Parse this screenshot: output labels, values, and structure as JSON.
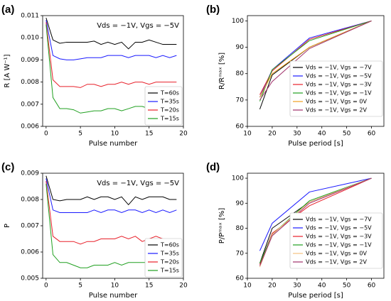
{
  "chart_data": [
    {
      "type": "line",
      "label": "(a)",
      "annotation": "Vds = −1V, Vgs = −5V",
      "xlabel": "Pulse number",
      "ylabel": "R [A W⁻¹]",
      "x": [
        0,
        1,
        2,
        3,
        4,
        5,
        6,
        7,
        8,
        9,
        10,
        11,
        12,
        13,
        14,
        15,
        16,
        17,
        18,
        19
      ],
      "xlim": [
        -0.5,
        20
      ],
      "xticks": [
        0,
        5,
        10,
        15,
        20
      ],
      "ylim": [
        0.006,
        0.011
      ],
      "yticks": [
        0.006,
        0.007,
        0.008,
        0.009,
        {
          "value": 0.01,
          "label": "0.010"
        },
        0.011
      ],
      "legend": "lower right",
      "series": [
        {
          "name": "T=60s",
          "color": "#000000",
          "values": [
            0.0109,
            0.0099,
            0.00975,
            0.0098,
            0.0098,
            0.0098,
            0.0098,
            0.00985,
            0.0097,
            0.0098,
            0.0097,
            0.0098,
            0.0095,
            0.0098,
            0.0098,
            0.0099,
            0.0098,
            0.0097,
            0.0097,
            0.0097
          ]
        },
        {
          "name": "T=35s",
          "color": "#1a1aff",
          "values": [
            0.0108,
            0.0092,
            0.00905,
            0.009,
            0.009,
            0.00905,
            0.0091,
            0.0091,
            0.0091,
            0.0092,
            0.0092,
            0.0092,
            0.0091,
            0.0092,
            0.0092,
            0.0092,
            0.0091,
            0.0092,
            0.0091,
            0.0092
          ]
        },
        {
          "name": "T=20s",
          "color": "#e8202a",
          "values": [
            0.0107,
            0.0081,
            0.0078,
            0.0078,
            0.0078,
            0.00775,
            0.0079,
            0.0079,
            0.0078,
            0.0079,
            0.0079,
            0.008,
            0.0079,
            0.008,
            0.008,
            0.0079,
            0.008,
            0.008,
            0.008,
            0.008
          ]
        },
        {
          "name": "T=15s",
          "color": "#20a020",
          "values": [
            0.0106,
            0.0073,
            0.0068,
            0.0068,
            0.00675,
            0.0066,
            0.00665,
            0.0067,
            0.0067,
            0.0068,
            0.0068,
            0.0067,
            0.0068,
            0.0069,
            0.0069,
            0.0068,
            0.0069,
            0.0069,
            0.0068,
            0.0069
          ]
        }
      ]
    },
    {
      "type": "line",
      "label": "(b)",
      "xlabel": "Pulse period [s]",
      "ylabel": "R/Rᵐᵃˣ [%]",
      "x": [
        15,
        20,
        35,
        60
      ],
      "xlim": [
        10,
        65
      ],
      "xticks": [
        10,
        20,
        30,
        40,
        50,
        60
      ],
      "ylim": [
        60,
        102
      ],
      "yticks": [
        60,
        70,
        80,
        90,
        100
      ],
      "legend": "lower right",
      "series": [
        {
          "name": "Vds = −1V, Vgs = −7V",
          "color": "#000000",
          "values": [
            66.5,
            79.5,
            90,
            100
          ]
        },
        {
          "name": "Vds = −1V, Vgs = −5V",
          "color": "#1a1aff",
          "values": [
            71,
            81.5,
            93.5,
            100
          ]
        },
        {
          "name": "Vds = −1V, Vgs = −3V",
          "color": "#e8202a",
          "values": [
            72,
            81,
            93,
            100
          ]
        },
        {
          "name": "Vds = −1V, Vgs = −1V",
          "color": "#20a020",
          "values": [
            69.5,
            81.5,
            92.5,
            100
          ]
        },
        {
          "name": "Vds = −1V, Vgs = 0V",
          "color": "#f0a020",
          "values": [
            71,
            80,
            90,
            100
          ]
        },
        {
          "name": "Vds = −1V, Vgs = 2V",
          "color": "#a0306a",
          "values": [
            70,
            77,
            89.5,
            100
          ]
        }
      ]
    },
    {
      "type": "line",
      "label": "(c)",
      "annotation": "Vds = −1V, Vgs = −5V",
      "xlabel": "Pulse number",
      "ylabel": "P",
      "x": [
        0,
        1,
        2,
        3,
        4,
        5,
        6,
        7,
        8,
        9,
        10,
        11,
        12,
        13,
        14,
        15,
        16,
        17,
        18,
        19
      ],
      "xlim": [
        -0.5,
        20
      ],
      "xticks": [
        0,
        5,
        10,
        15,
        20
      ],
      "ylim": [
        0.005,
        0.009
      ],
      "yticks": [
        0.005,
        0.006,
        0.007,
        0.008,
        0.009
      ],
      "legend": "lower right",
      "series": [
        {
          "name": "T=60s",
          "color": "#000000",
          "values": [
            0.0089,
            0.008,
            0.00795,
            0.008,
            0.008,
            0.008,
            0.0081,
            0.008,
            0.0081,
            0.0081,
            0.008,
            0.0081,
            0.0078,
            0.0081,
            0.008,
            0.0081,
            0.0081,
            0.0081,
            0.008,
            0.008
          ]
        },
        {
          "name": "T=35s",
          "color": "#1a1aff",
          "values": [
            0.0088,
            0.0076,
            0.0075,
            0.0075,
            0.0075,
            0.0075,
            0.0075,
            0.0076,
            0.0075,
            0.0076,
            0.0076,
            0.0075,
            0.0076,
            0.0076,
            0.0075,
            0.0076,
            0.0075,
            0.0076,
            0.0075,
            0.0076
          ]
        },
        {
          "name": "T=20s",
          "color": "#e8202a",
          "values": [
            0.0087,
            0.0066,
            0.0064,
            0.0064,
            0.0064,
            0.0063,
            0.0064,
            0.0064,
            0.0065,
            0.0065,
            0.0065,
            0.0066,
            0.0065,
            0.0066,
            0.0064,
            0.0065,
            0.0066,
            0.0065,
            0.0065,
            0.0065
          ]
        },
        {
          "name": "T=15s",
          "color": "#20a020",
          "values": [
            0.0086,
            0.0059,
            0.0056,
            0.0056,
            0.0055,
            0.0054,
            0.0054,
            0.0055,
            0.0055,
            0.0055,
            0.0056,
            0.0055,
            0.0056,
            0.0056,
            0.0056,
            0.0056,
            0.0056,
            0.0056,
            0.0056,
            0.0056
          ]
        }
      ]
    },
    {
      "type": "line",
      "label": "(d)",
      "xlabel": "Pulse period [s]",
      "ylabel": "P/Pᵐᵃˣ [%]",
      "x": [
        15,
        20,
        35,
        60
      ],
      "xlim": [
        10,
        65
      ],
      "xticks": [
        10,
        20,
        30,
        40,
        50,
        60
      ],
      "ylim": [
        60,
        102
      ],
      "yticks": [
        60,
        70,
        80,
        90,
        100
      ],
      "legend": "lower right",
      "series": [
        {
          "name": "Vds = −1V, Vgs = −7V",
          "color": "#000000",
          "values": [
            66,
            80,
            90.5,
            100
          ]
        },
        {
          "name": "Vds = −1V, Vgs = −5V",
          "color": "#1a1aff",
          "values": [
            71,
            82,
            94.5,
            100
          ]
        },
        {
          "name": "Vds = −1V, Vgs = −3V",
          "color": "#e8202a",
          "values": [
            65.5,
            78,
            89,
            100
          ]
        },
        {
          "name": "Vds = −1V, Vgs = −1V",
          "color": "#20a020",
          "values": [
            66,
            77.5,
            91,
            100
          ]
        },
        {
          "name": "Vds = −1V, Vgs = 0V",
          "color": "#f5c080",
          "values": [
            64.5,
            77.5,
            90.5,
            100
          ]
        },
        {
          "name": "Vds = −1V, Vgs = 2V",
          "color": "#a0306a",
          "values": [
            65,
            77,
            90,
            100
          ]
        }
      ]
    }
  ]
}
